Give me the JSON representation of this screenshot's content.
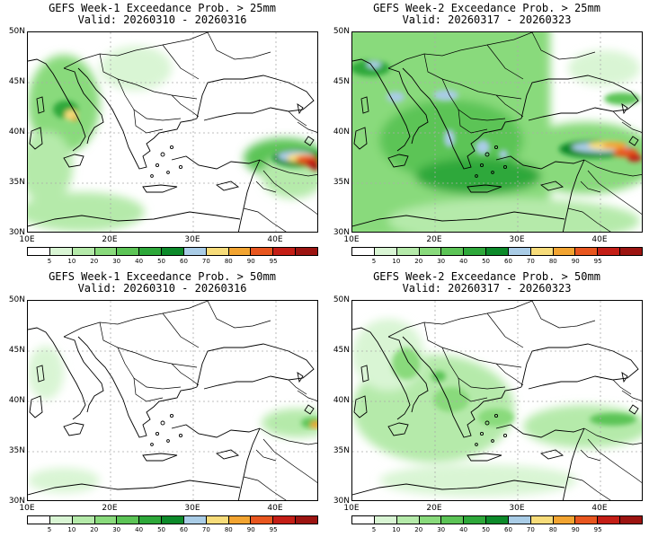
{
  "panels": [
    {
      "title": "GEFS Week-1 Exceedance Prob. > 25mm",
      "valid": "Valid: 20260310 - 20260316"
    },
    {
      "title": "GEFS Week-2 Exceedance Prob. > 25mm",
      "valid": "Valid: 20260317 - 20260323"
    },
    {
      "title": "GEFS Week-1 Exceedance Prob. > 50mm",
      "valid": "Valid: 20260310 - 20260316"
    },
    {
      "title": "GEFS Week-2 Exceedance Prob. > 50mm",
      "valid": "Valid: 20260317 - 20260323"
    }
  ],
  "lat_labels": [
    "50N",
    "45N",
    "40N",
    "35N",
    "30N"
  ],
  "lon_labels": [
    "10E",
    "20E",
    "30E",
    "40E"
  ],
  "colorbar": {
    "labels": [
      "5",
      "10",
      "20",
      "30",
      "40",
      "50",
      "60",
      "70",
      "80",
      "90",
      "95"
    ],
    "colors": [
      "#ffffff",
      "#d9f5d4",
      "#b5eaaa",
      "#89da7c",
      "#5cc456",
      "#2ea83a",
      "#0c8a2a",
      "#a9cce6",
      "#f7dc7a",
      "#f2a431",
      "#e8561f",
      "#c41e16",
      "#9c1411"
    ]
  }
}
